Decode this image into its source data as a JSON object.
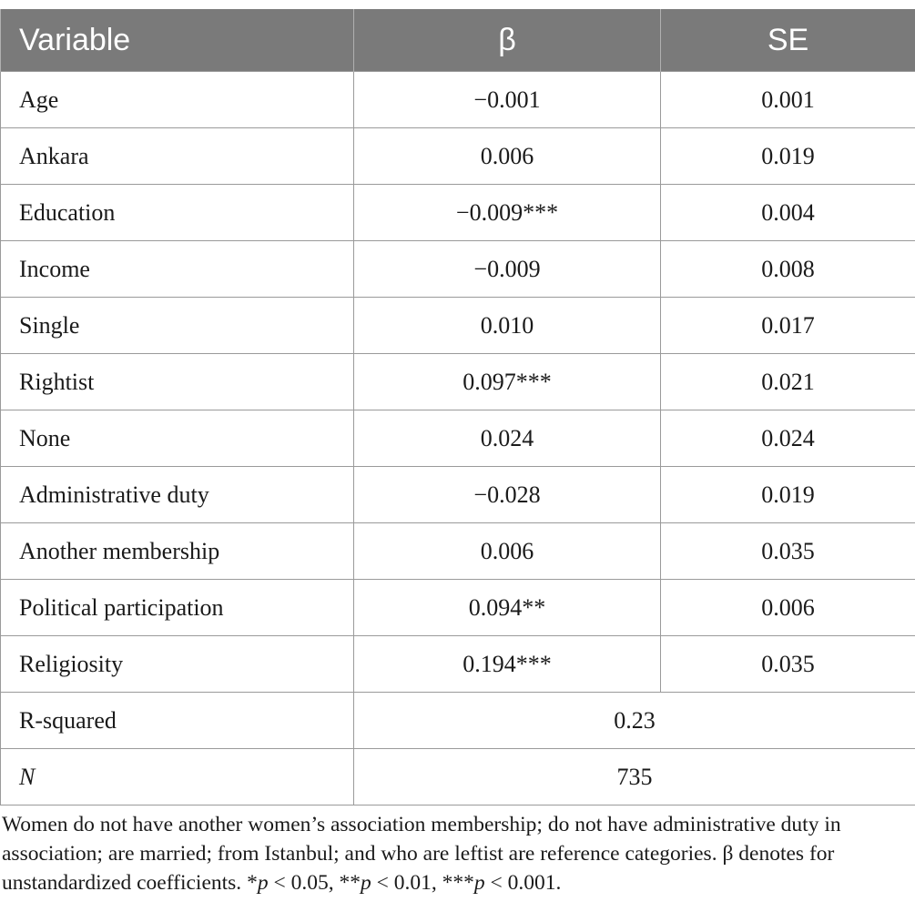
{
  "table": {
    "headers": [
      "Variable",
      "β",
      "SE"
    ],
    "rows": [
      {
        "variable": "Age",
        "beta": "−0.001",
        "se": "0.001"
      },
      {
        "variable": "Ankara",
        "beta": "0.006",
        "se": "0.019"
      },
      {
        "variable": "Education",
        "beta": "−0.009***",
        "se": "0.004"
      },
      {
        "variable": "Income",
        "beta": "−0.009",
        "se": "0.008"
      },
      {
        "variable": "Single",
        "beta": "0.010",
        "se": "0.017"
      },
      {
        "variable": "Rightist",
        "beta": "0.097***",
        "se": "0.021"
      },
      {
        "variable": "None",
        "beta": "0.024",
        "se": "0.024"
      },
      {
        "variable": "Administrative duty",
        "beta": "−0.028",
        "se": "0.019"
      },
      {
        "variable": "Another membership",
        "beta": "0.006",
        "se": "0.035"
      },
      {
        "variable": "Political participation",
        "beta": "0.094**",
        "se": "0.006"
      },
      {
        "variable": "Religiosity",
        "beta": "0.194***",
        "se": "0.035"
      }
    ],
    "summary_rows": [
      {
        "label": "R-squared",
        "value": "0.23"
      },
      {
        "label": "N",
        "value": "735"
      }
    ]
  },
  "note": {
    "text": "Women do not have another women’s association membership; do not have administrative duty in association; are married; from Istanbul; and who are leftist are reference categories. β denotes for unstandardized coefficients.",
    "sig1_stars": "*",
    "sig1_p": "p",
    "sig1_rest": " < 0.05, ",
    "sig2_stars": "**",
    "sig2_p": "p",
    "sig2_rest": " < 0.01, ",
    "sig3_stars": "***",
    "sig3_p": "p",
    "sig3_rest": " < 0.001."
  }
}
